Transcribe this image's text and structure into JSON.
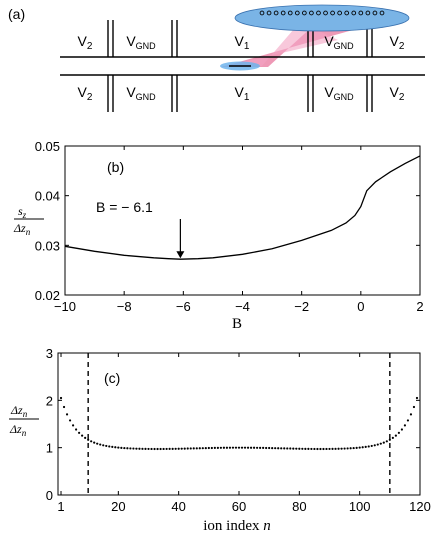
{
  "panel_a": {
    "label": "(a)",
    "top_electrodes": [
      {
        "main": "V",
        "sub": "2"
      },
      {
        "main": "V",
        "sub": "GND"
      },
      {
        "main": "V",
        "sub": "1"
      },
      {
        "main": "V",
        "sub": "GND"
      },
      {
        "main": "V",
        "sub": "2"
      }
    ],
    "bottom_electrodes": [
      {
        "main": "V",
        "sub": "2"
      },
      {
        "main": "V",
        "sub": "GND"
      },
      {
        "main": "V",
        "sub": "1"
      },
      {
        "main": "V",
        "sub": "GND"
      },
      {
        "main": "V",
        "sub": "2"
      }
    ],
    "ion_count": 18,
    "colors": {
      "ellipse": "#7ab4e6",
      "beam": "#e0457a",
      "wire": "#000000"
    }
  },
  "chart_data": [
    {
      "id": "b",
      "type": "line",
      "panel_label": "(b)",
      "ylabel_num": "s",
      "ylabel_num_sub": "z",
      "ylabel_den": "Δz",
      "ylabel_den_sub": "n",
      "xlabel": "B",
      "xlim": [
        -10,
        2
      ],
      "ylim": [
        0.02,
        0.05
      ],
      "xticks": [
        -10,
        -8,
        -6,
        -4,
        -2,
        0,
        2
      ],
      "xtick_labels": [
        "−10",
        "−8",
        "−6",
        "−4",
        "−2",
        "0",
        "2"
      ],
      "yticks": [
        0.02,
        0.03,
        0.04,
        0.05
      ],
      "ytick_labels": [
        "0.02",
        "0.03",
        "0.04",
        "0.05"
      ],
      "annotation": {
        "text": "B = − 6.1",
        "x": -6.1,
        "y": 0.0272
      },
      "x": [
        -10,
        -9,
        -8,
        -7,
        -6.5,
        -6.1,
        -5.5,
        -5,
        -4,
        -3,
        -2,
        -1,
        -0.5,
        -0.2,
        0,
        0.2,
        0.5,
        1,
        1.5,
        2
      ],
      "y": [
        0.0298,
        0.0288,
        0.028,
        0.0275,
        0.0273,
        0.0272,
        0.0273,
        0.0275,
        0.0282,
        0.0293,
        0.031,
        0.033,
        0.0345,
        0.036,
        0.0378,
        0.041,
        0.0428,
        0.0448,
        0.0465,
        0.048
      ]
    },
    {
      "id": "c",
      "type": "scatter",
      "panel_label": "(c)",
      "ylabel_num": "Δz",
      "ylabel_num_sub": "n",
      "ylabel_den": "Δz",
      "ylabel_den_sub": "n",
      "xlabel_main": "ion index ",
      "xlabel_var": "n",
      "xlim": [
        0,
        120
      ],
      "ylim": [
        0,
        3
      ],
      "xticks": [
        1,
        20,
        40,
        60,
        80,
        100,
        120
      ],
      "xtick_labels": [
        "1",
        "20",
        "40",
        "60",
        "80",
        "100",
        "120"
      ],
      "yticks": [
        0,
        1,
        2,
        3
      ],
      "ytick_labels": [
        "0",
        "1",
        "2",
        "3"
      ],
      "vlines": [
        10,
        110
      ],
      "n_points": 119,
      "profile": {
        "mid": 1.0,
        "edge_value": 2.1,
        "edge_decay": 5.0,
        "amplitude": 1.05,
        "valley_depth": 0.05
      }
    }
  ]
}
